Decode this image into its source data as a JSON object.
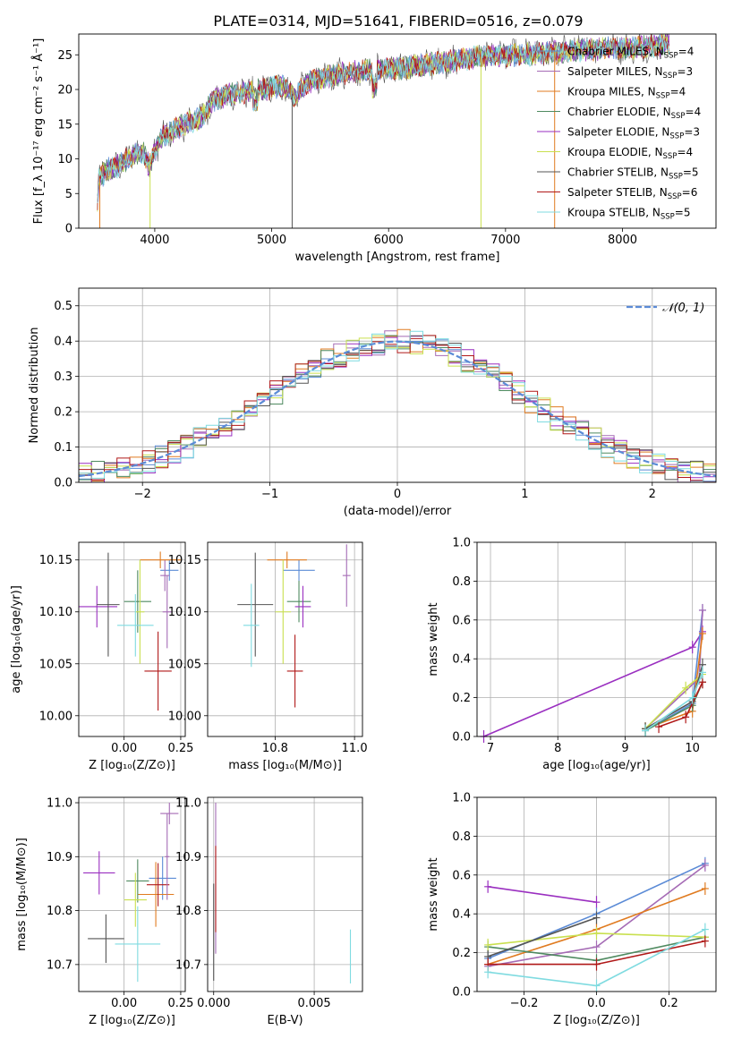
{
  "title": "PLATE=0314, MJD=51641, FIBERID=0516, z=0.079",
  "colors": {
    "chabrier_miles": "#5b8bd6",
    "salpeter_miles": "#a56bb5",
    "kroupa_miles": "#e07b20",
    "chabrier_elodie": "#4f8a60",
    "salpeter_elodie": "#9a2fc0",
    "kroupa_elodie": "#c9e04f",
    "chabrier_stelib": "#555555",
    "salpeter_stelib": "#b01818",
    "kroupa_stelib": "#7fdbe0",
    "gaussian": "#5b8bd6",
    "grid": "#b0b0b0"
  },
  "chart_data": [
    {
      "id": "spectrum",
      "type": "line",
      "xlabel": "wavelength [Angstrom, rest frame]",
      "ylabel": "Flux [f_λ 10⁻¹⁷ erg cm⁻² s⁻¹ Å⁻¹]",
      "xlim": [
        3350,
        8800
      ],
      "ylim": [
        0,
        28
      ],
      "xticks": [
        4000,
        5000,
        6000,
        7000,
        8000
      ],
      "yticks": [
        0,
        5,
        10,
        15,
        20,
        25
      ],
      "legend_position": "top-right",
      "grid": false,
      "legend": [
        {
          "label": "Chabrier MILES, N",
          "sub": "SSP",
          "suffix": "=4",
          "color": "chabrier_miles"
        },
        {
          "label": "Salpeter MILES, N",
          "sub": "SSP",
          "suffix": "=3",
          "color": "salpeter_miles"
        },
        {
          "label": "Kroupa MILES, N",
          "sub": "SSP",
          "suffix": "=4",
          "color": "kroupa_miles"
        },
        {
          "label": "Chabrier ELODIE, N",
          "sub": "SSP",
          "suffix": "=4",
          "color": "chabrier_elodie"
        },
        {
          "label": "Salpeter ELODIE, N",
          "sub": "SSP",
          "suffix": "=3",
          "color": "salpeter_elodie"
        },
        {
          "label": "Kroupa ELODIE, N",
          "sub": "SSP",
          "suffix": "=4",
          "color": "kroupa_elodie"
        },
        {
          "label": "Chabrier STELIB, N",
          "sub": "SSP",
          "suffix": "=5",
          "color": "chabrier_stelib"
        },
        {
          "label": "Salpeter STELIB, N",
          "sub": "SSP",
          "suffix": "=6",
          "color": "salpeter_stelib"
        },
        {
          "label": "Kroupa STELIB, N",
          "sub": "SSP",
          "suffix": "=5",
          "color": "kroupa_stelib"
        }
      ],
      "data_shape": [
        [
          3500,
          0
        ],
        [
          3520,
          7
        ],
        [
          3600,
          8.5
        ],
        [
          3700,
          9
        ],
        [
          3800,
          10.5
        ],
        [
          3900,
          11
        ],
        [
          3950,
          9
        ],
        [
          4050,
          13
        ],
        [
          4200,
          14.5
        ],
        [
          4400,
          16
        ],
        [
          4500,
          18.5
        ],
        [
          4700,
          19.5
        ],
        [
          4900,
          20
        ],
        [
          5100,
          20.5
        ],
        [
          5200,
          19
        ],
        [
          5300,
          21
        ],
        [
          5500,
          22
        ],
        [
          5700,
          22.5
        ],
        [
          5900,
          23
        ],
        [
          6100,
          23
        ],
        [
          6300,
          23.5
        ],
        [
          6500,
          24
        ],
        [
          6700,
          24.5
        ],
        [
          6900,
          25
        ],
        [
          7100,
          25
        ],
        [
          7300,
          25.2
        ],
        [
          7500,
          25.5
        ],
        [
          7700,
          25.8
        ],
        [
          7900,
          26
        ],
        [
          8100,
          26
        ],
        [
          8300,
          26.3
        ],
        [
          8400,
          26.5
        ]
      ],
      "spikes": [
        {
          "x": 5175,
          "to": 0,
          "series": "chabrier_stelib"
        },
        {
          "x": 6790,
          "to": 0,
          "series": "kroupa_elodie"
        },
        {
          "x": 7420,
          "to": 0,
          "series": "kroupa_miles"
        },
        {
          "x": 3530,
          "to": 0,
          "series": "kroupa_miles"
        },
        {
          "x": 3960,
          "to": 0,
          "series": "kroupa_elodie"
        }
      ]
    },
    {
      "id": "residual-histogram",
      "type": "step",
      "xlabel": "(data-model)/error",
      "ylabel": "Normed distribution",
      "xlim": [
        -2.5,
        2.5
      ],
      "ylim": [
        0,
        0.55
      ],
      "xticks": [
        -2,
        -1,
        0,
        1,
        2
      ],
      "yticks": [
        0.0,
        0.1,
        0.2,
        0.3,
        0.4,
        0.5
      ],
      "grid": true,
      "legend_position": "top-right",
      "gaussian_label": "𝒩(0, 1)",
      "bin_width": 0.1
    },
    {
      "id": "age-vs-Z",
      "type": "errorbar",
      "xlabel": "Z [log₁₀(Z/Z⊙)]",
      "ylabel": "age  [log₁₀(age/yr)]",
      "xlim": [
        -0.2,
        0.27
      ],
      "ylim": [
        9.98,
        10.167
      ],
      "xticks": [
        0.0,
        0.25
      ],
      "yticks": [
        10.0,
        10.05,
        10.1,
        10.15
      ],
      "grid": true,
      "points": [
        {
          "x": 0.2,
          "y": 10.14,
          "xerr": 0.04,
          "yerr": 0.01,
          "color": "chabrier_miles"
        },
        {
          "x": 0.18,
          "y": 10.135,
          "xerr": 0.02,
          "yerr": 0.015,
          "color": "salpeter_miles"
        },
        {
          "x": 0.16,
          "y": 10.15,
          "xerr": 0.09,
          "yerr": 0.008,
          "color": "kroupa_miles"
        },
        {
          "x": 0.06,
          "y": 10.11,
          "xerr": 0.06,
          "yerr": 0.03,
          "color": "chabrier_elodie"
        },
        {
          "x": -0.12,
          "y": 10.105,
          "xerr": 0.09,
          "yerr": 0.02,
          "color": "salpeter_elodie"
        },
        {
          "x": 0.07,
          "y": 10.1,
          "xerr": 0.02,
          "yerr": 0.05,
          "color": "kroupa_elodie"
        },
        {
          "x": -0.07,
          "y": 10.107,
          "xerr": 0.05,
          "yerr": 0.05,
          "color": "chabrier_stelib"
        },
        {
          "x": 0.15,
          "y": 10.043,
          "xerr": 0.06,
          "yerr": 0.038,
          "color": "salpeter_stelib"
        },
        {
          "x": 0.05,
          "y": 10.087,
          "xerr": 0.08,
          "yerr": 0.03,
          "color": "kroupa_stelib"
        },
        {
          "x": 0.19,
          "y": 10.1,
          "xerr": 0.02,
          "yerr": 0.035,
          "color": "salpeter_miles"
        }
      ]
    },
    {
      "id": "age-vs-mass",
      "type": "errorbar",
      "xlabel": "mass [log₁₀(M/M⊙)]",
      "ylabel": "",
      "xlim": [
        10.63,
        11.02
      ],
      "ylim": [
        9.98,
        10.167
      ],
      "xticks": [
        10.8,
        11.0
      ],
      "yticks": [
        10.0,
        10.05,
        10.1,
        10.15
      ],
      "grid": true,
      "points": [
        {
          "x": 10.86,
          "y": 10.14,
          "xerr": 0.04,
          "yerr": 0.01,
          "color": "chabrier_miles"
        },
        {
          "x": 10.98,
          "y": 10.135,
          "xerr": 0.01,
          "yerr": 0.03,
          "color": "salpeter_miles"
        },
        {
          "x": 10.83,
          "y": 10.15,
          "xerr": 0.05,
          "yerr": 0.008,
          "color": "kroupa_miles"
        },
        {
          "x": 10.86,
          "y": 10.11,
          "xerr": 0.03,
          "yerr": 0.02,
          "color": "chabrier_elodie"
        },
        {
          "x": 10.87,
          "y": 10.105,
          "xerr": 0.02,
          "yerr": 0.02,
          "color": "salpeter_elodie"
        },
        {
          "x": 10.82,
          "y": 10.1,
          "xerr": 0.02,
          "yerr": 0.05,
          "color": "kroupa_elodie"
        },
        {
          "x": 10.75,
          "y": 10.107,
          "xerr": 0.045,
          "yerr": 0.05,
          "color": "chabrier_stelib"
        },
        {
          "x": 10.85,
          "y": 10.043,
          "xerr": 0.02,
          "yerr": 0.035,
          "color": "salpeter_stelib"
        },
        {
          "x": 10.74,
          "y": 10.087,
          "xerr": 0.02,
          "yerr": 0.04,
          "color": "kroupa_stelib"
        }
      ]
    },
    {
      "id": "mass-weight-vs-age",
      "type": "line",
      "xlabel": "age  [log₁₀(age/yr)]",
      "ylabel": "mass weight",
      "xlim": [
        6.8,
        10.35
      ],
      "ylim": [
        0,
        1.0
      ],
      "xticks": [
        7,
        8,
        9,
        10
      ],
      "yticks": [
        0.0,
        0.2,
        0.4,
        0.6,
        0.8,
        1.0
      ],
      "grid": true,
      "series": [
        {
          "color": "salpeter_elodie",
          "x": [
            6.9,
            10.0,
            10.15
          ],
          "y": [
            0.0,
            0.46,
            0.54
          ]
        },
        {
          "color": "chabrier_miles",
          "x": [
            9.3,
            10.0,
            10.15
          ],
          "y": [
            0.03,
            0.17,
            0.65
          ]
        },
        {
          "color": "salpeter_miles",
          "x": [
            9.3,
            10.1,
            10.15
          ],
          "y": [
            0.04,
            0.3,
            0.65
          ]
        },
        {
          "color": "kroupa_miles",
          "x": [
            9.3,
            10.0,
            10.15
          ],
          "y": [
            0.04,
            0.13,
            0.53
          ]
        },
        {
          "color": "chabrier_elodie",
          "x": [
            9.3,
            10.0,
            10.15
          ],
          "y": [
            0.03,
            0.16,
            0.28
          ]
        },
        {
          "color": "kroupa_elodie",
          "x": [
            9.3,
            9.9,
            10.15
          ],
          "y": [
            0.04,
            0.25,
            0.32
          ]
        },
        {
          "color": "chabrier_stelib",
          "x": [
            9.3,
            10.0,
            10.15
          ],
          "y": [
            0.04,
            0.18,
            0.37
          ]
        },
        {
          "color": "salpeter_stelib",
          "x": [
            9.5,
            9.9,
            10.15
          ],
          "y": [
            0.05,
            0.1,
            0.28
          ]
        },
        {
          "color": "kroupa_stelib",
          "x": [
            9.3,
            10.0,
            10.15
          ],
          "y": [
            0.03,
            0.2,
            0.33
          ]
        }
      ]
    },
    {
      "id": "mass-vs-Z",
      "type": "errorbar",
      "xlabel": "Z [log₁₀(Z/Z⊙)]",
      "ylabel": "mass [log₁₀(M/M⊙)]",
      "xlim": [
        -0.2,
        0.27
      ],
      "ylim": [
        10.65,
        11.01
      ],
      "xticks": [
        0.0,
        0.25
      ],
      "yticks": [
        10.7,
        10.8,
        10.9,
        11.0
      ],
      "grid": true,
      "points": [
        {
          "x": 0.17,
          "y": 10.86,
          "xerr": 0.06,
          "yerr": 0.04,
          "color": "chabrier_miles"
        },
        {
          "x": 0.2,
          "y": 10.98,
          "xerr": 0.04,
          "yerr": 0.02,
          "color": "salpeter_miles"
        },
        {
          "x": 0.14,
          "y": 10.83,
          "xerr": 0.08,
          "yerr": 0.06,
          "color": "kroupa_miles"
        },
        {
          "x": 0.06,
          "y": 10.855,
          "xerr": 0.05,
          "yerr": 0.04,
          "color": "chabrier_elodie"
        },
        {
          "x": -0.11,
          "y": 10.87,
          "xerr": 0.07,
          "yerr": 0.04,
          "color": "salpeter_elodie"
        },
        {
          "x": 0.05,
          "y": 10.82,
          "xerr": 0.05,
          "yerr": 0.05,
          "color": "kroupa_elodie"
        },
        {
          "x": -0.08,
          "y": 10.748,
          "xerr": 0.08,
          "yerr": 0.045,
          "color": "chabrier_stelib"
        },
        {
          "x": 0.15,
          "y": 10.848,
          "xerr": 0.05,
          "yerr": 0.04,
          "color": "salpeter_stelib"
        },
        {
          "x": 0.06,
          "y": 10.738,
          "xerr": 0.1,
          "yerr": 0.07,
          "color": "kroupa_stelib"
        },
        {
          "x": 0.19,
          "y": 10.9,
          "xerr": 0.01,
          "yerr": 0.08,
          "color": "salpeter_miles"
        }
      ]
    },
    {
      "id": "mass-vs-ebv",
      "type": "errorbar",
      "xlabel": "E(B-V)",
      "ylabel": "",
      "xlim": [
        -0.0003,
        0.0074
      ],
      "ylim": [
        10.65,
        11.01
      ],
      "xticks": [
        0.0,
        0.005
      ],
      "yticks": [
        10.7,
        10.8,
        10.9,
        11.0
      ],
      "grid": true,
      "points": [
        {
          "x": 0.0001,
          "y": 10.86,
          "xerr": 0.0,
          "yerr": 0.14,
          "color": "salpeter_miles"
        },
        {
          "x": 0.0001,
          "y": 10.84,
          "xerr": 0.0,
          "yerr": 0.08,
          "color": "salpeter_stelib"
        },
        {
          "x": 0.0,
          "y": 10.76,
          "xerr": 0.0,
          "yerr": 0.09,
          "color": "chabrier_stelib"
        },
        {
          "x": 0.0068,
          "y": 10.715,
          "xerr": 0.0,
          "yerr": 0.05,
          "color": "kroupa_stelib"
        }
      ]
    },
    {
      "id": "mass-weight-vs-Z",
      "type": "line",
      "xlabel": "Z [log₁₀(Z/Z⊙)]",
      "ylabel": "mass weight",
      "xlim": [
        -0.33,
        0.33
      ],
      "ylim": [
        0,
        1.0
      ],
      "xticks": [
        -0.2,
        0.0,
        0.2
      ],
      "yticks": [
        0.0,
        0.2,
        0.4,
        0.6,
        0.8,
        1.0
      ],
      "grid": true,
      "series": [
        {
          "color": "salpeter_elodie",
          "x": [
            -0.3,
            0.0
          ],
          "y": [
            0.54,
            0.46
          ]
        },
        {
          "color": "chabrier_miles",
          "x": [
            -0.3,
            0.0,
            0.3
          ],
          "y": [
            0.17,
            0.4,
            0.66
          ]
        },
        {
          "color": "salpeter_miles",
          "x": [
            -0.3,
            0.0,
            0.3
          ],
          "y": [
            0.13,
            0.23,
            0.65
          ]
        },
        {
          "color": "kroupa_miles",
          "x": [
            -0.3,
            0.0,
            0.3
          ],
          "y": [
            0.14,
            0.32,
            0.53
          ]
        },
        {
          "color": "chabrier_elodie",
          "x": [
            -0.3,
            0.0,
            0.3
          ],
          "y": [
            0.23,
            0.16,
            0.28
          ]
        },
        {
          "color": "kroupa_elodie",
          "x": [
            -0.3,
            0.0,
            0.3
          ],
          "y": [
            0.24,
            0.3,
            0.28
          ]
        },
        {
          "color": "chabrier_stelib",
          "x": [
            -0.3,
            0.0
          ],
          "y": [
            0.18,
            0.38
          ]
        },
        {
          "color": "salpeter_stelib",
          "x": [
            -0.3,
            0.0,
            0.3
          ],
          "y": [
            0.14,
            0.14,
            0.26
          ]
        },
        {
          "color": "kroupa_stelib",
          "x": [
            -0.3,
            0.0,
            0.3
          ],
          "y": [
            0.1,
            0.03,
            0.32
          ]
        }
      ]
    }
  ]
}
